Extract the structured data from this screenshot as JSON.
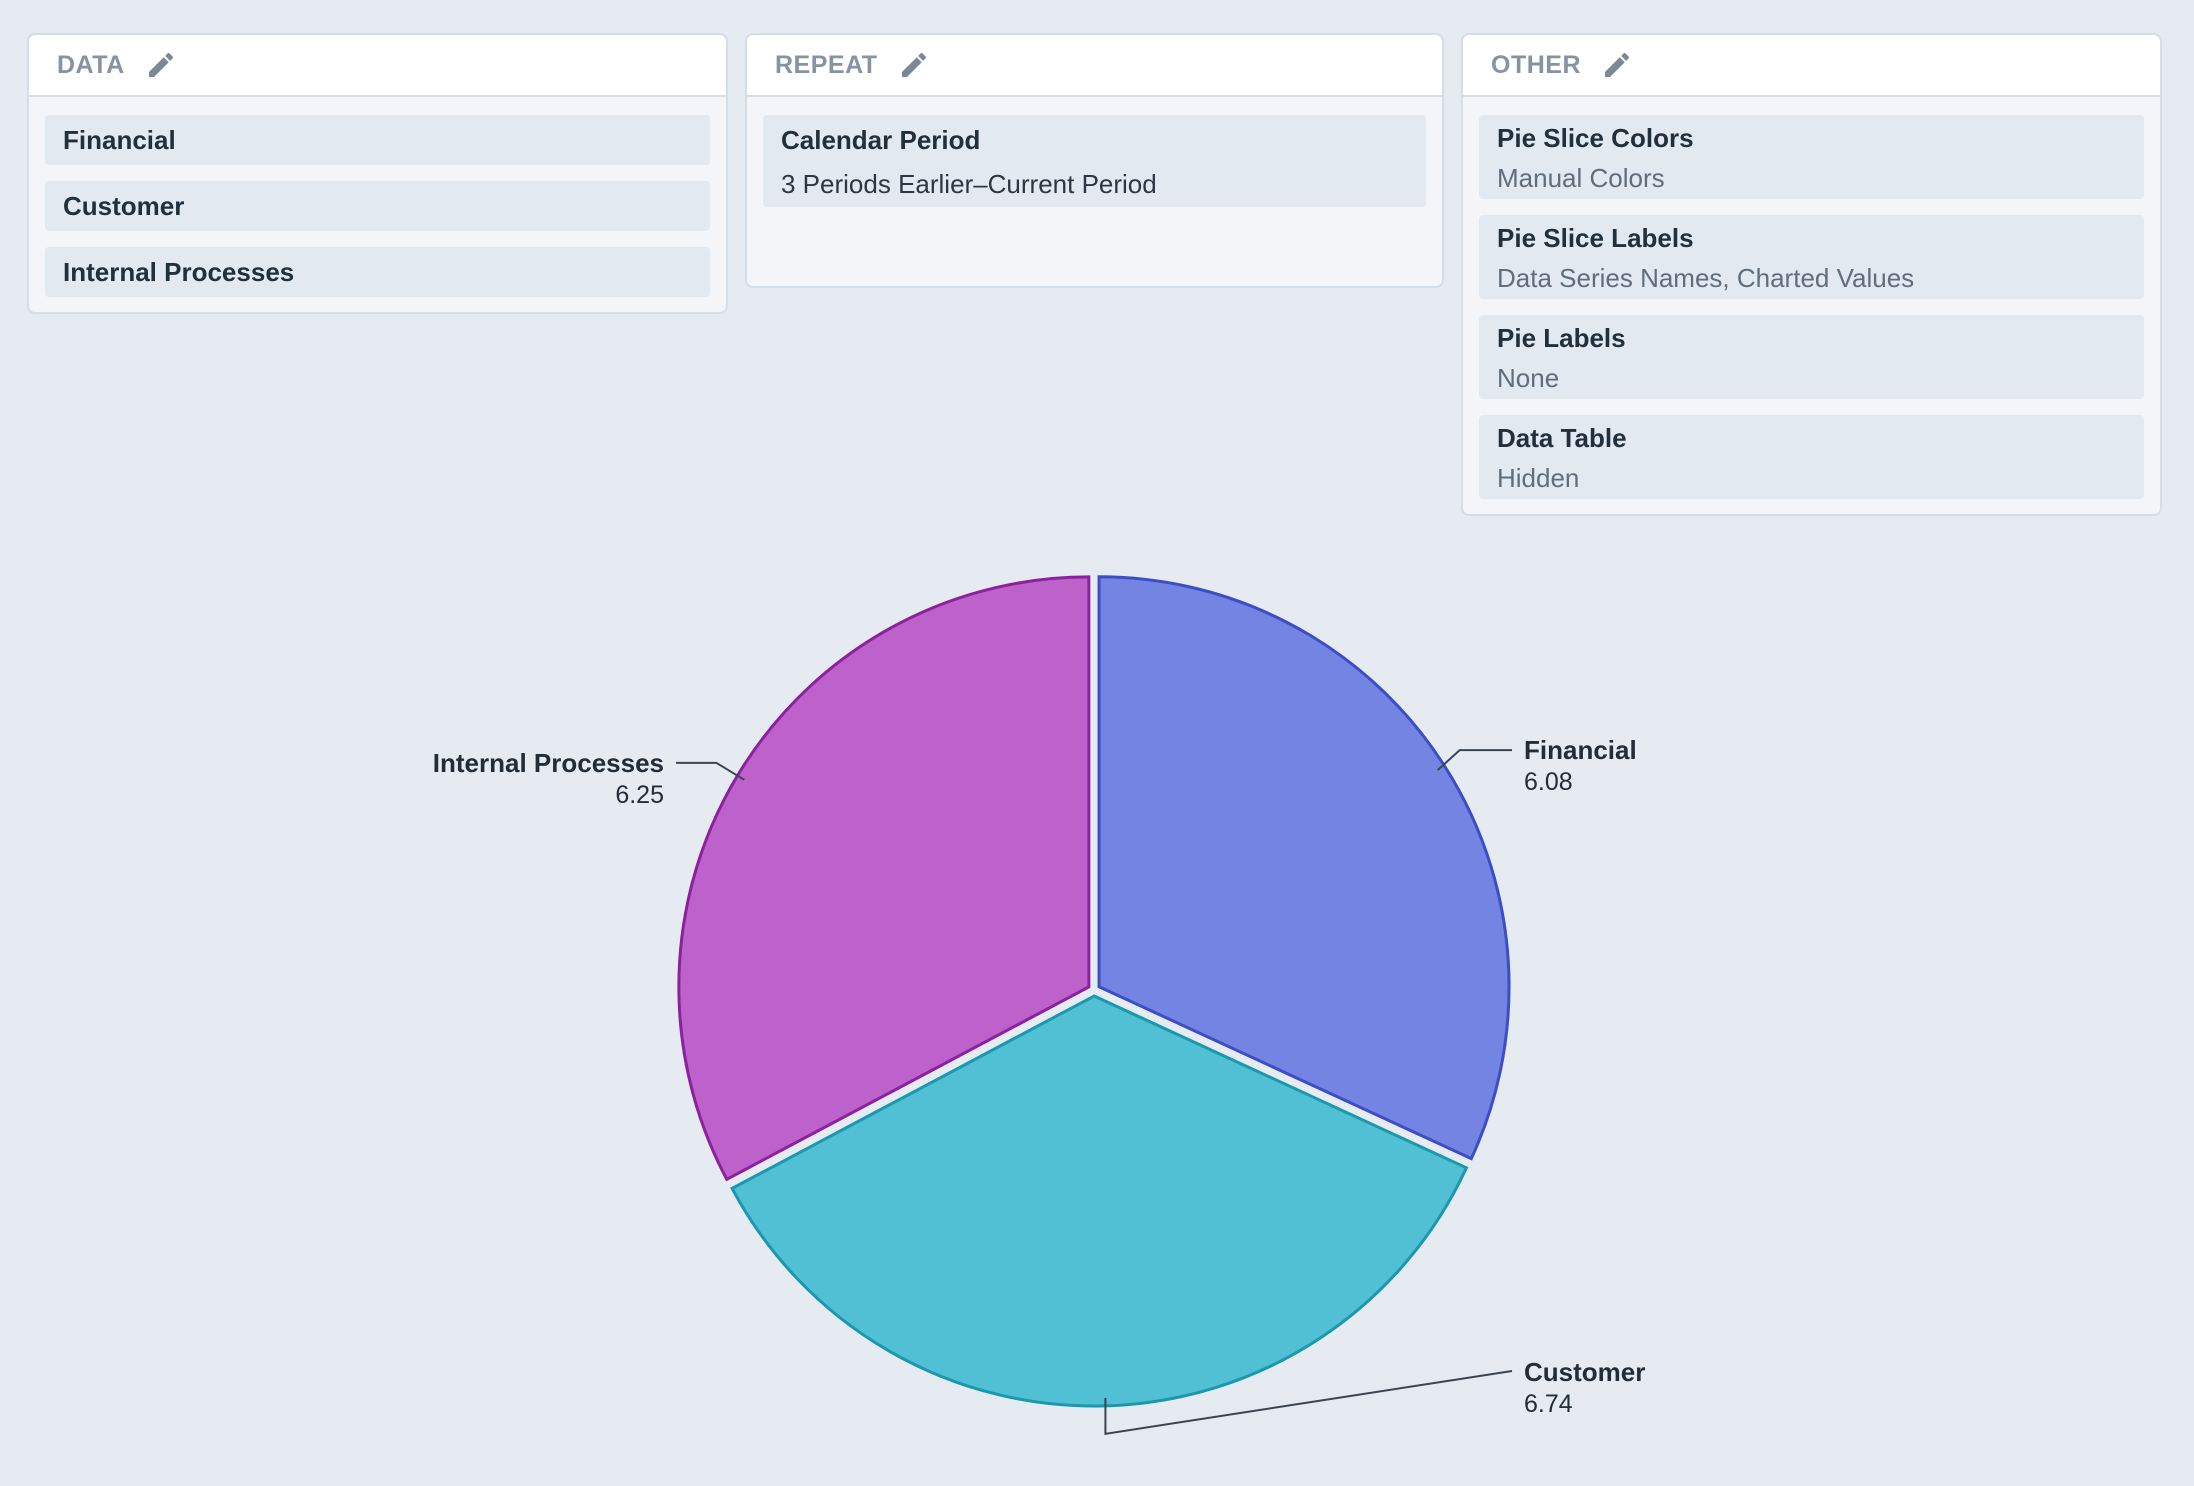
{
  "data_panel": {
    "title": "DATA",
    "items": [
      "Financial",
      "Customer",
      "Internal Processes"
    ]
  },
  "repeat_panel": {
    "title": "REPEAT",
    "item": {
      "label": "Calendar Period",
      "value": "3 Periods Earlier–Current Period"
    }
  },
  "other_panel": {
    "title": "OTHER",
    "items": [
      {
        "label": "Pie Slice Colors",
        "value": "Manual Colors"
      },
      {
        "label": "Pie Slice Labels",
        "value": "Data Series Names, Charted Values"
      },
      {
        "label": "Pie Labels",
        "value": "None"
      },
      {
        "label": "Data Table",
        "value": "Hidden"
      }
    ]
  },
  "icons": {
    "edit": "pencil-icon"
  },
  "chart_data": {
    "type": "pie",
    "title": "",
    "slices": [
      {
        "name": "Financial",
        "value": 6.08,
        "display": "6.08",
        "color": "#7384e2",
        "stroke": "#3d4ec4"
      },
      {
        "name": "Customer",
        "value": 6.74,
        "display": "6.74",
        "color": "#51c0d5",
        "stroke": "#1a98ad"
      },
      {
        "name": "Internal Processes",
        "value": 6.25,
        "display": "6.25",
        "color": "#be62cb",
        "stroke": "#8c21a0"
      }
    ]
  }
}
